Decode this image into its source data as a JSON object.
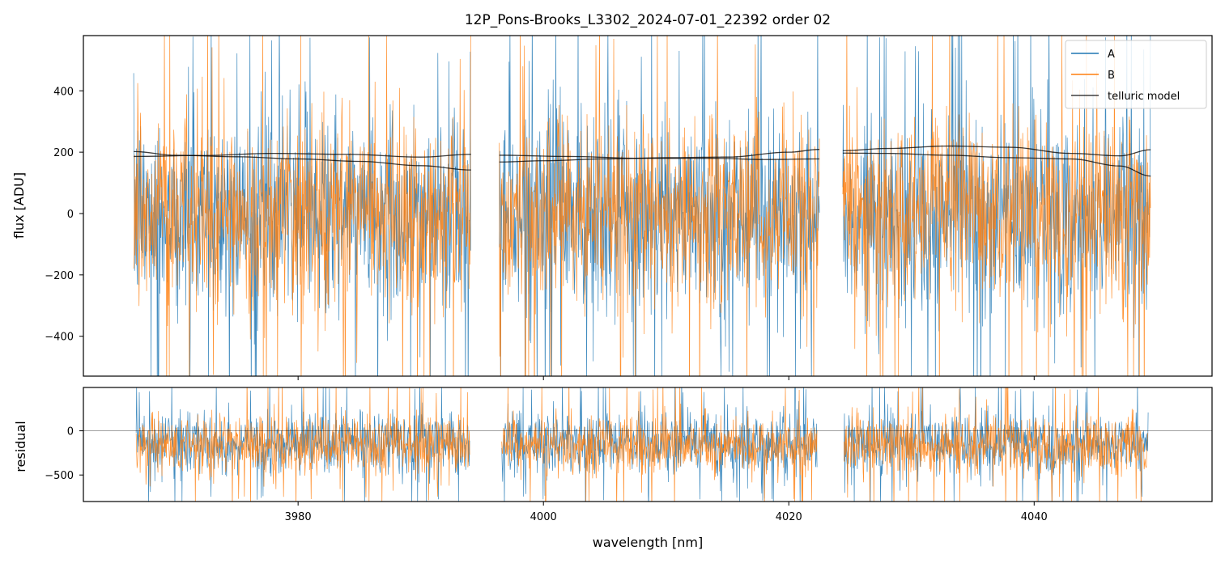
{
  "chart_data": [
    {
      "type": "line",
      "title": "12P_Pons-Brooks_L3302_2024-07-01_22392  order 02",
      "xlabel": "",
      "ylabel": "flux [ADU]",
      "xlim": [
        3962.5,
        4054.5
      ],
      "ylim": [
        -530,
        580
      ],
      "yticks": [
        -400,
        -200,
        0,
        200,
        400
      ],
      "ytick_labels": [
        "−400",
        "−200",
        "0",
        "200",
        "400"
      ],
      "xticks": [
        3980,
        4000,
        4020,
        4040
      ],
      "grid": false,
      "legend": {
        "placement": "top-right",
        "entries": [
          "A",
          "B",
          "telluric model"
        ]
      },
      "segments": [
        [
          3966.6,
          3994.1
        ],
        [
          3996.4,
          4022.5
        ],
        [
          4024.4,
          4049.5
        ]
      ],
      "series": [
        {
          "name": "A",
          "color": "#1f77b4",
          "noise_level": 165,
          "spike_max": 580
        },
        {
          "name": "B",
          "color": "#ff7f0e",
          "noise_level": 155,
          "spike_max": 580
        },
        {
          "name": "telluric model",
          "color": "#000000",
          "curves": [
            [
              {
                "x": 3966.6,
                "y": 202
              },
              {
                "x": 3970,
                "y": 190
              },
              {
                "x": 3975,
                "y": 185
              },
              {
                "x": 3980,
                "y": 178
              },
              {
                "x": 3985,
                "y": 170
              },
              {
                "x": 3990,
                "y": 156
              },
              {
                "x": 3994.1,
                "y": 142
              }
            ],
            [
              {
                "x": 3966.6,
                "y": 186
              },
              {
                "x": 3972,
                "y": 189
              },
              {
                "x": 3978,
                "y": 196
              },
              {
                "x": 3984,
                "y": 193
              },
              {
                "x": 3990,
                "y": 184
              },
              {
                "x": 3994.1,
                "y": 193
              }
            ],
            [
              {
                "x": 3996.4,
                "y": 168
              },
              {
                "x": 4000,
                "y": 172
              },
              {
                "x": 4005,
                "y": 178
              },
              {
                "x": 4010,
                "y": 182
              },
              {
                "x": 4015,
                "y": 184
              },
              {
                "x": 4020,
                "y": 200
              },
              {
                "x": 4022.5,
                "y": 209
              }
            ],
            [
              {
                "x": 3996.4,
                "y": 190
              },
              {
                "x": 4002,
                "y": 186
              },
              {
                "x": 4008,
                "y": 180
              },
              {
                "x": 4014,
                "y": 180
              },
              {
                "x": 4018,
                "y": 176
              },
              {
                "x": 4022.5,
                "y": 178
              }
            ],
            [
              {
                "x": 4024.4,
                "y": 205
              },
              {
                "x": 4028,
                "y": 212
              },
              {
                "x": 4033,
                "y": 220
              },
              {
                "x": 4038,
                "y": 216
              },
              {
                "x": 4043,
                "y": 196
              },
              {
                "x": 4047,
                "y": 188
              },
              {
                "x": 4049.5,
                "y": 208
              }
            ],
            [
              {
                "x": 4024.4,
                "y": 197
              },
              {
                "x": 4028,
                "y": 196
              },
              {
                "x": 4033,
                "y": 190
              },
              {
                "x": 4038,
                "y": 182
              },
              {
                "x": 4043,
                "y": 178
              },
              {
                "x": 4047,
                "y": 155
              },
              {
                "x": 4049.5,
                "y": 122
              }
            ]
          ]
        }
      ]
    },
    {
      "type": "line",
      "title": "",
      "xlabel": "wavelength [nm]",
      "ylabel": "residual",
      "xlim": [
        3962.5,
        4054.5
      ],
      "ylim": [
        -800,
        490
      ],
      "yticks": [
        -500,
        0
      ],
      "ytick_labels": [
        "−500",
        "0"
      ],
      "xticks": [
        3980,
        4000,
        4020,
        4040
      ],
      "xtick_labels": [
        "3980",
        "4000",
        "4020",
        "4040"
      ],
      "grid": false,
      "reference_line": 0,
      "segments": [
        [
          3966.8,
          3994.0
        ],
        [
          3996.6,
          4022.3
        ],
        [
          4024.5,
          4049.3
        ]
      ],
      "series": [
        {
          "name": "A",
          "color": "#1f77b4",
          "offset": -140,
          "noise_level": 175,
          "spike_max": 490
        },
        {
          "name": "B",
          "color": "#ff7f0e",
          "offset": -160,
          "noise_level": 165,
          "spike_max": 490
        }
      ]
    }
  ]
}
